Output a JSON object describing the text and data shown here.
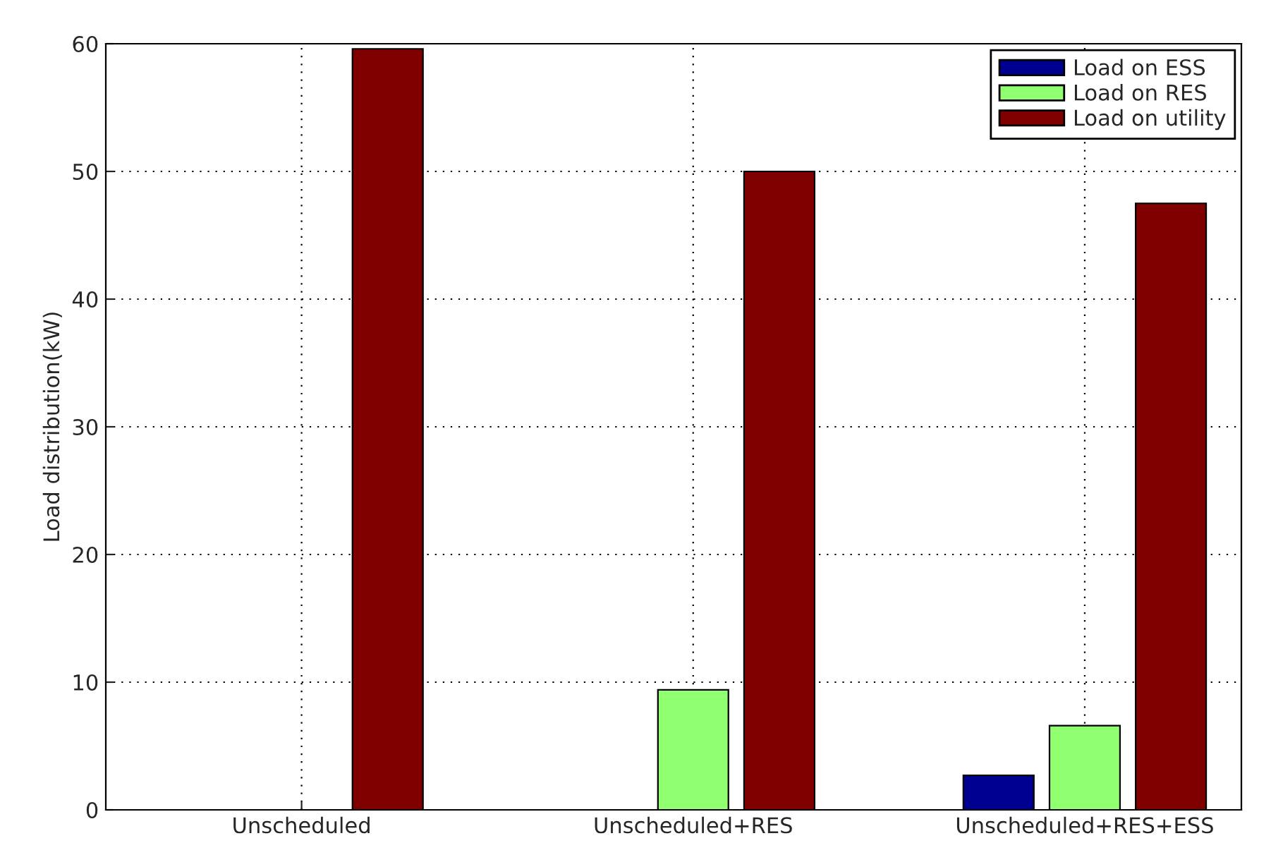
{
  "chart_data": {
    "type": "bar",
    "ylabel": "Load distribution(kW)",
    "categories": [
      "Unscheduled",
      "Unscheduled+RES",
      "Unscheduled+RES+ESS"
    ],
    "series": [
      {
        "name": "Load on ESS",
        "color": "#000090",
        "values": [
          0,
          0,
          2.7
        ]
      },
      {
        "name": "Load on RES",
        "color": "#90ff70",
        "values": [
          0,
          9.4,
          6.6
        ]
      },
      {
        "name": "Load on utility",
        "color": "#800000",
        "values": [
          59.6,
          50.0,
          47.5
        ]
      }
    ],
    "ylim": [
      0,
      60
    ],
    "yticks": [
      0,
      10,
      20,
      30,
      40,
      50,
      60
    ],
    "grid": true,
    "legend": "top right"
  }
}
